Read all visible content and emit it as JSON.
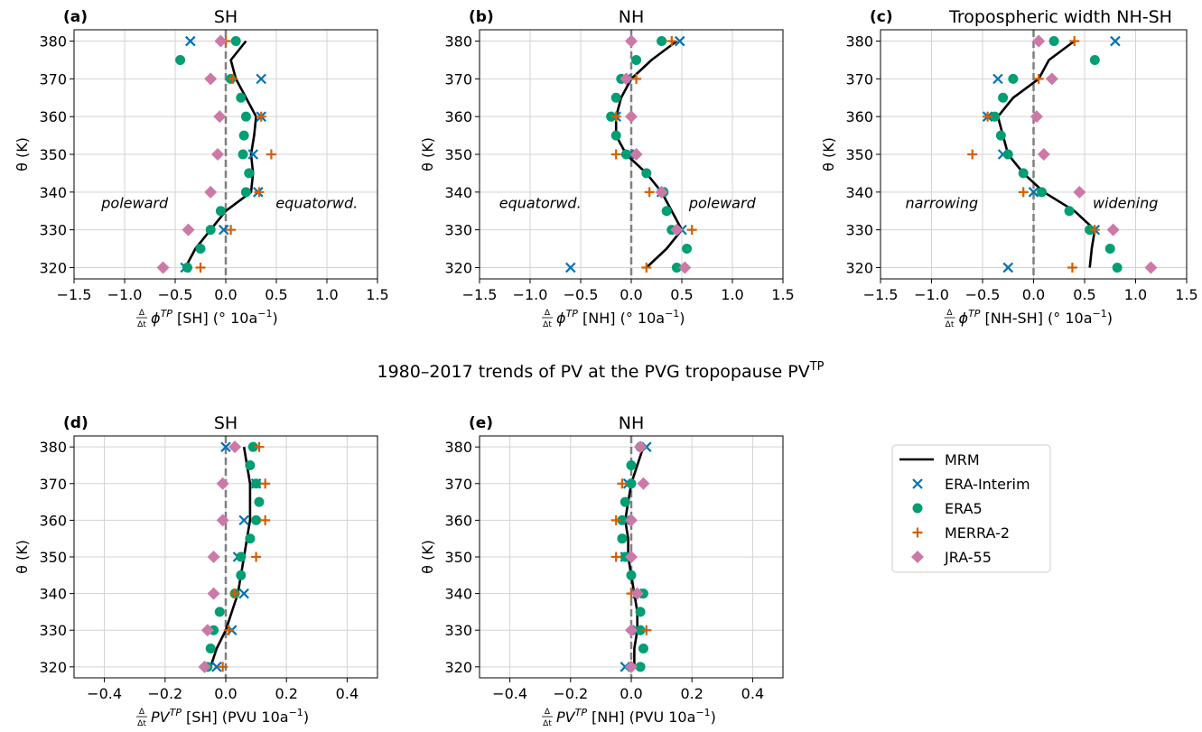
{
  "suptitle": "1980–2017 trends of PV at the PVG tropopause PV",
  "suptitle_sup": "TP",
  "colors": {
    "MRM": "#000000",
    "ERA-Interim": "#0072b2",
    "ERA5": "#009e73",
    "MERRA-2": "#d55e00",
    "JRA-55": "#cc79a7",
    "zero_line": "#808080",
    "grid": "#d3d3d3"
  },
  "legend": {
    "placement": "right of panel (e)",
    "entries": [
      {
        "name": "MRM",
        "marker": "line"
      },
      {
        "name": "ERA-Interim",
        "marker": "x"
      },
      {
        "name": "ERA5",
        "marker": "circle"
      },
      {
        "name": "MERRA-2",
        "marker": "plus"
      },
      {
        "name": "JRA-55",
        "marker": "diamond"
      }
    ]
  },
  "chart_data": [
    {
      "type": "scatter",
      "letter": "(a)",
      "title": "SH",
      "xlabel_prefix": "ϕ",
      "xlabel_sup": "TP",
      "xlabel_suffix": " [SH] (° 10a",
      "xlabel_units_sup": "−1",
      "xlabel_close": ")",
      "ylabel": "θ (K)",
      "xlim": [
        -1.5,
        1.5
      ],
      "ylim": [
        317,
        383
      ],
      "xticks": [
        -1.5,
        -1.0,
        -0.5,
        0.0,
        0.5,
        1.0,
        1.5
      ],
      "xtick_labels": [
        "−1.5",
        "−1.0",
        "−0.5",
        "0.0",
        "0.5",
        "1.0",
        "1.5"
      ],
      "yticks": [
        320,
        330,
        340,
        350,
        360,
        370,
        380
      ],
      "annotations": {
        "left": "poleward",
        "right": "equatorwd."
      },
      "theta": [
        320,
        325,
        330,
        335,
        340,
        345,
        350,
        355,
        360,
        365,
        370,
        375,
        380
      ],
      "series": [
        {
          "name": "MRM",
          "values": [
            -0.4,
            -0.3,
            -0.15,
            0.0,
            0.25,
            0.27,
            0.25,
            0.28,
            0.3,
            0.2,
            0.1,
            0.05,
            0.2
          ]
        },
        {
          "name": "ERA-Interim",
          "theta": [
            320,
            330,
            340,
            350,
            360,
            370,
            380
          ],
          "values": [
            -0.4,
            -0.02,
            0.32,
            0.27,
            0.35,
            0.35,
            -0.35
          ]
        },
        {
          "name": "ERA5",
          "theta": [
            320,
            325,
            330,
            335,
            340,
            345,
            350,
            355,
            360,
            365,
            370,
            375,
            380
          ],
          "values": [
            -0.38,
            -0.25,
            -0.15,
            -0.05,
            0.2,
            0.23,
            0.17,
            0.18,
            0.2,
            0.15,
            0.05,
            -0.45,
            0.1
          ]
        },
        {
          "name": "MERRA-2",
          "theta": [
            320,
            330,
            340,
            350,
            360,
            370,
            380
          ],
          "values": [
            -0.25,
            0.05,
            0.33,
            0.45,
            0.35,
            0.07,
            0.0
          ]
        },
        {
          "name": "JRA-55",
          "theta": [
            320,
            330,
            340,
            350,
            360,
            370,
            380
          ],
          "values": [
            -0.62,
            -0.37,
            -0.15,
            -0.08,
            -0.06,
            -0.15,
            -0.05
          ]
        }
      ]
    },
    {
      "type": "scatter",
      "letter": "(b)",
      "title": "NH",
      "xlabel_prefix": "ϕ",
      "xlabel_sup": "TP",
      "xlabel_suffix": " [NH] (° 10a",
      "xlabel_units_sup": "−1",
      "xlabel_close": ")",
      "ylabel": "θ (K)",
      "xlim": [
        -1.5,
        1.5
      ],
      "ylim": [
        317,
        383
      ],
      "xticks": [
        -1.5,
        -1.0,
        -0.5,
        0.0,
        0.5,
        1.0,
        1.5
      ],
      "xtick_labels": [
        "−1.5",
        "−1.0",
        "−0.5",
        "0.0",
        "0.5",
        "1.0",
        "1.5"
      ],
      "yticks": [
        320,
        330,
        340,
        350,
        360,
        370,
        380
      ],
      "annotations": {
        "left": "equatorwd.",
        "right": "poleward"
      },
      "theta": [
        320,
        325,
        330,
        335,
        340,
        345,
        350,
        355,
        360,
        365,
        370,
        375,
        380
      ],
      "series": [
        {
          "name": "MRM",
          "values": [
            0.15,
            0.35,
            0.5,
            0.4,
            0.3,
            0.15,
            -0.05,
            -0.15,
            -0.15,
            -0.1,
            0.0,
            0.2,
            0.45
          ]
        },
        {
          "name": "ERA-Interim",
          "theta": [
            320,
            330,
            340,
            350,
            360,
            370,
            380
          ],
          "values": [
            -0.6,
            0.5,
            0.3,
            -0.02,
            -0.15,
            -0.05,
            0.48
          ]
        },
        {
          "name": "ERA5",
          "theta": [
            320,
            325,
            330,
            335,
            340,
            345,
            350,
            355,
            360,
            365,
            370,
            375,
            380
          ],
          "values": [
            0.45,
            0.55,
            0.4,
            0.35,
            0.32,
            0.15,
            -0.05,
            -0.15,
            -0.2,
            -0.15,
            -0.1,
            0.05,
            0.3
          ]
        },
        {
          "name": "MERRA-2",
          "theta": [
            320,
            330,
            340,
            350,
            360,
            370,
            380
          ],
          "values": [
            0.15,
            0.6,
            0.18,
            -0.15,
            -0.15,
            0.05,
            0.4
          ]
        },
        {
          "name": "JRA-55",
          "theta": [
            320,
            330,
            340,
            350,
            360,
            370,
            380
          ],
          "values": [
            0.53,
            0.45,
            0.3,
            0.05,
            0.0,
            -0.05,
            0.0
          ]
        }
      ]
    },
    {
      "type": "scatter",
      "letter": "(c)",
      "title": "Tropospheric width NH-SH",
      "xlabel_prefix": "ϕ",
      "xlabel_sup": "TP",
      "xlabel_suffix": " [NH-SH] (° 10a",
      "xlabel_units_sup": "−1",
      "xlabel_close": ")",
      "ylabel": "θ (K)",
      "xlim": [
        -1.5,
        1.5
      ],
      "ylim": [
        317,
        383
      ],
      "xticks": [
        -1.5,
        -1.0,
        -0.5,
        0.0,
        0.5,
        1.0,
        1.5
      ],
      "xtick_labels": [
        "−1.5",
        "−1.0",
        "−0.5",
        "0.0",
        "0.5",
        "1.0",
        "1.5"
      ],
      "yticks": [
        320,
        330,
        340,
        350,
        360,
        370,
        380
      ],
      "annotations": {
        "left": "narrowing",
        "right": "widening"
      },
      "theta": [
        320,
        325,
        330,
        335,
        340,
        345,
        350,
        355,
        360,
        365,
        370,
        375,
        380
      ],
      "series": [
        {
          "name": "MRM",
          "values": [
            0.55,
            0.57,
            0.6,
            0.4,
            0.1,
            -0.1,
            -0.25,
            -0.3,
            -0.35,
            -0.2,
            0.05,
            0.15,
            0.4
          ]
        },
        {
          "name": "ERA-Interim",
          "theta": [
            320,
            330,
            340,
            350,
            360,
            370,
            380
          ],
          "values": [
            -0.25,
            0.6,
            0.0,
            -0.3,
            -0.45,
            -0.35,
            0.8
          ]
        },
        {
          "name": "ERA5",
          "theta": [
            320,
            325,
            330,
            335,
            340,
            345,
            350,
            355,
            360,
            365,
            370,
            375,
            380
          ],
          "values": [
            0.82,
            0.75,
            0.55,
            0.35,
            0.08,
            -0.1,
            -0.25,
            -0.32,
            -0.38,
            -0.3,
            -0.2,
            0.6,
            0.2
          ]
        },
        {
          "name": "MERRA-2",
          "theta": [
            320,
            330,
            340,
            350,
            360,
            370,
            380
          ],
          "values": [
            0.38,
            0.6,
            -0.1,
            -0.6,
            -0.45,
            0.05,
            0.4
          ]
        },
        {
          "name": "JRA-55",
          "theta": [
            320,
            330,
            340,
            350,
            360,
            370,
            380
          ],
          "values": [
            1.15,
            0.78,
            0.45,
            0.1,
            0.03,
            0.18,
            0.05
          ]
        }
      ]
    },
    {
      "type": "scatter",
      "letter": "(d)",
      "title": "SH",
      "xlabel_prefix": "PV",
      "xlabel_sup": "TP",
      "xlabel_suffix": " [SH] (PVU 10a",
      "xlabel_units_sup": "−1",
      "xlabel_close": ")",
      "ylabel": "θ (K)",
      "xlim": [
        -0.5,
        0.5
      ],
      "ylim": [
        317,
        383
      ],
      "xticks": [
        -0.4,
        -0.2,
        0.0,
        0.2,
        0.4
      ],
      "xtick_labels": [
        "−0.4",
        "−0.2",
        "0.0",
        "0.2",
        "0.4"
      ],
      "yticks": [
        320,
        330,
        340,
        350,
        360,
        370,
        380
      ],
      "theta": [
        320,
        325,
        330,
        335,
        340,
        345,
        350,
        355,
        360,
        365,
        370,
        375,
        380
      ],
      "series": [
        {
          "name": "MRM",
          "values": [
            -0.05,
            -0.03,
            0.0,
            0.02,
            0.04,
            0.05,
            0.06,
            0.07,
            0.08,
            0.08,
            0.08,
            0.07,
            0.06
          ]
        },
        {
          "name": "ERA-Interim",
          "theta": [
            320,
            330,
            340,
            350,
            360,
            370,
            380
          ],
          "values": [
            -0.03,
            0.02,
            0.06,
            0.04,
            0.06,
            0.1,
            0.0
          ]
        },
        {
          "name": "ERA5",
          "theta": [
            320,
            325,
            330,
            335,
            340,
            345,
            350,
            355,
            360,
            365,
            370,
            375,
            380
          ],
          "values": [
            -0.06,
            -0.05,
            -0.04,
            -0.02,
            0.03,
            0.05,
            0.05,
            0.08,
            0.1,
            0.11,
            0.1,
            0.08,
            0.09
          ]
        },
        {
          "name": "MERRA-2",
          "theta": [
            320,
            330,
            340,
            350,
            360,
            370,
            380
          ],
          "values": [
            -0.01,
            0.01,
            0.03,
            0.1,
            0.13,
            0.13,
            0.11
          ]
        },
        {
          "name": "JRA-55",
          "theta": [
            320,
            330,
            340,
            350,
            360,
            370,
            380
          ],
          "values": [
            -0.07,
            -0.06,
            -0.04,
            -0.04,
            -0.01,
            -0.01,
            0.03
          ]
        }
      ]
    },
    {
      "type": "scatter",
      "letter": "(e)",
      "title": "NH",
      "xlabel_prefix": "PV",
      "xlabel_sup": "TP",
      "xlabel_suffix": " [NH] (PVU 10a",
      "xlabel_units_sup": "−1",
      "xlabel_close": ")",
      "ylabel": "θ (K)",
      "xlim": [
        -0.5,
        0.5
      ],
      "ylim": [
        317,
        383
      ],
      "xticks": [
        -0.4,
        -0.2,
        0.0,
        0.2,
        0.4
      ],
      "xtick_labels": [
        "−0.4",
        "−0.2",
        "0.0",
        "0.2",
        "0.4"
      ],
      "yticks": [
        320,
        330,
        340,
        350,
        360,
        370,
        380
      ],
      "theta": [
        320,
        325,
        330,
        335,
        340,
        345,
        350,
        355,
        360,
        365,
        370,
        375,
        380
      ],
      "series": [
        {
          "name": "MRM",
          "values": [
            0.01,
            0.01,
            0.02,
            0.02,
            0.01,
            0.0,
            -0.01,
            -0.01,
            -0.02,
            -0.01,
            0.0,
            0.02,
            0.04
          ]
        },
        {
          "name": "ERA-Interim",
          "theta": [
            320,
            330,
            340,
            350,
            360,
            370,
            380
          ],
          "values": [
            -0.02,
            0.02,
            0.02,
            -0.02,
            -0.02,
            -0.01,
            0.05
          ]
        },
        {
          "name": "ERA5",
          "theta": [
            320,
            325,
            330,
            335,
            340,
            345,
            350,
            355,
            360,
            365,
            370,
            375,
            380
          ],
          "values": [
            0.03,
            0.04,
            0.03,
            0.03,
            0.04,
            0.0,
            -0.02,
            -0.03,
            -0.03,
            -0.02,
            0.0,
            0.0,
            0.03
          ]
        },
        {
          "name": "MERRA-2",
          "theta": [
            320,
            330,
            340,
            350,
            360,
            370,
            380
          ],
          "values": [
            0.0,
            0.05,
            0.0,
            -0.05,
            -0.05,
            -0.03,
            0.03
          ]
        },
        {
          "name": "JRA-55",
          "theta": [
            320,
            330,
            340,
            350,
            360,
            370,
            380
          ],
          "values": [
            0.0,
            0.0,
            0.02,
            0.0,
            0.0,
            0.04,
            0.03
          ]
        }
      ]
    }
  ]
}
